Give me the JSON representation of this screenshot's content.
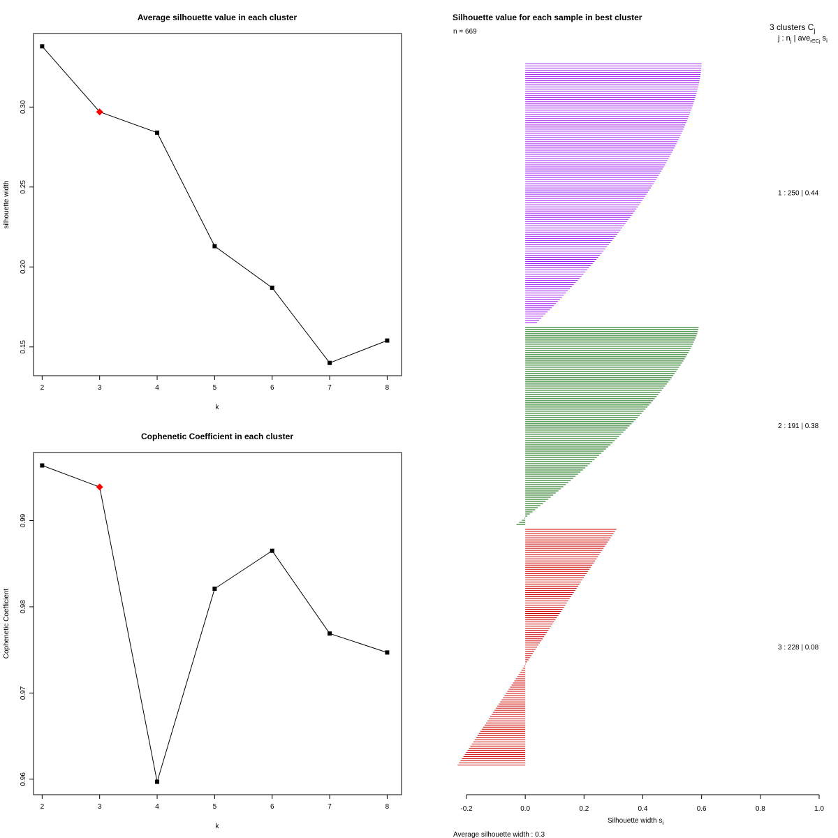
{
  "colors": {
    "line": "#000000",
    "highlight": "#ff0000",
    "cluster1": "#a020f0",
    "cluster2": "#006400",
    "cluster3": "#cd0000"
  },
  "chart_data": [
    {
      "id": "avg_silhouette",
      "type": "line",
      "title": "Average silhouette value in each cluster",
      "xlabel": "k",
      "ylabel": "silhouette width",
      "x": [
        2,
        3,
        4,
        5,
        6,
        7,
        8
      ],
      "values": [
        0.338,
        0.297,
        0.284,
        0.213,
        0.187,
        0.14,
        0.154
      ],
      "highlight_index": 1,
      "xlim": [
        1.85,
        8.25
      ],
      "ylim": [
        0.132,
        0.346
      ],
      "xticks": [
        "2",
        "3",
        "4",
        "5",
        "6",
        "7",
        "8"
      ],
      "yticks": [
        "0.15",
        "0.20",
        "0.25",
        "0.30"
      ]
    },
    {
      "id": "cophenetic",
      "type": "line",
      "title": "Cophenetic Coefficient in each cluster",
      "xlabel": "k",
      "ylabel": "Cophenetic Coefficient",
      "x": [
        2,
        3,
        4,
        5,
        6,
        7,
        8
      ],
      "values": [
        0.9964,
        0.9939,
        0.9597,
        0.9821,
        0.9865,
        0.9769,
        0.9747
      ],
      "highlight_index": 1,
      "xlim": [
        1.85,
        8.25
      ],
      "ylim": [
        0.9582,
        0.9979
      ],
      "xticks": [
        "2",
        "3",
        "4",
        "5",
        "6",
        "7",
        "8"
      ],
      "yticks": [
        "0.96",
        "0.97",
        "0.98",
        "0.99"
      ]
    },
    {
      "id": "silhouette_samples",
      "type": "bar",
      "orientation": "horizontal",
      "title": "Silhouette value for each sample in best cluster",
      "n_label": "n = 669",
      "header_line1": "3  clusters  C",
      "header_line1_sub": "j",
      "header_line2": "j :  n",
      "header_line2_mid": " | ave",
      "header_line2_sub2": "i∈Cj",
      "header_line2_end": " s",
      "header_line2_sub3": "i",
      "xlabel": "Silhouette width s",
      "xlabel_sub": "i",
      "footer": "Average silhouette width :  0.3",
      "xlim": [
        -0.2,
        1.0
      ],
      "xticks": [
        "-0.2",
        "0.0",
        "0.2",
        "0.4",
        "0.6",
        "0.8",
        "1.0"
      ],
      "clusters": [
        {
          "label": "1 :   250  |  0.44",
          "n": 250,
          "max": 0.6,
          "min": 0.04
        },
        {
          "label": "2 :   191  |  0.38",
          "n": 191,
          "max": 0.59,
          "min": -0.03
        },
        {
          "label": "3 :   228  |  0.08",
          "n": 228,
          "max": 0.31,
          "min": -0.23
        }
      ]
    }
  ]
}
